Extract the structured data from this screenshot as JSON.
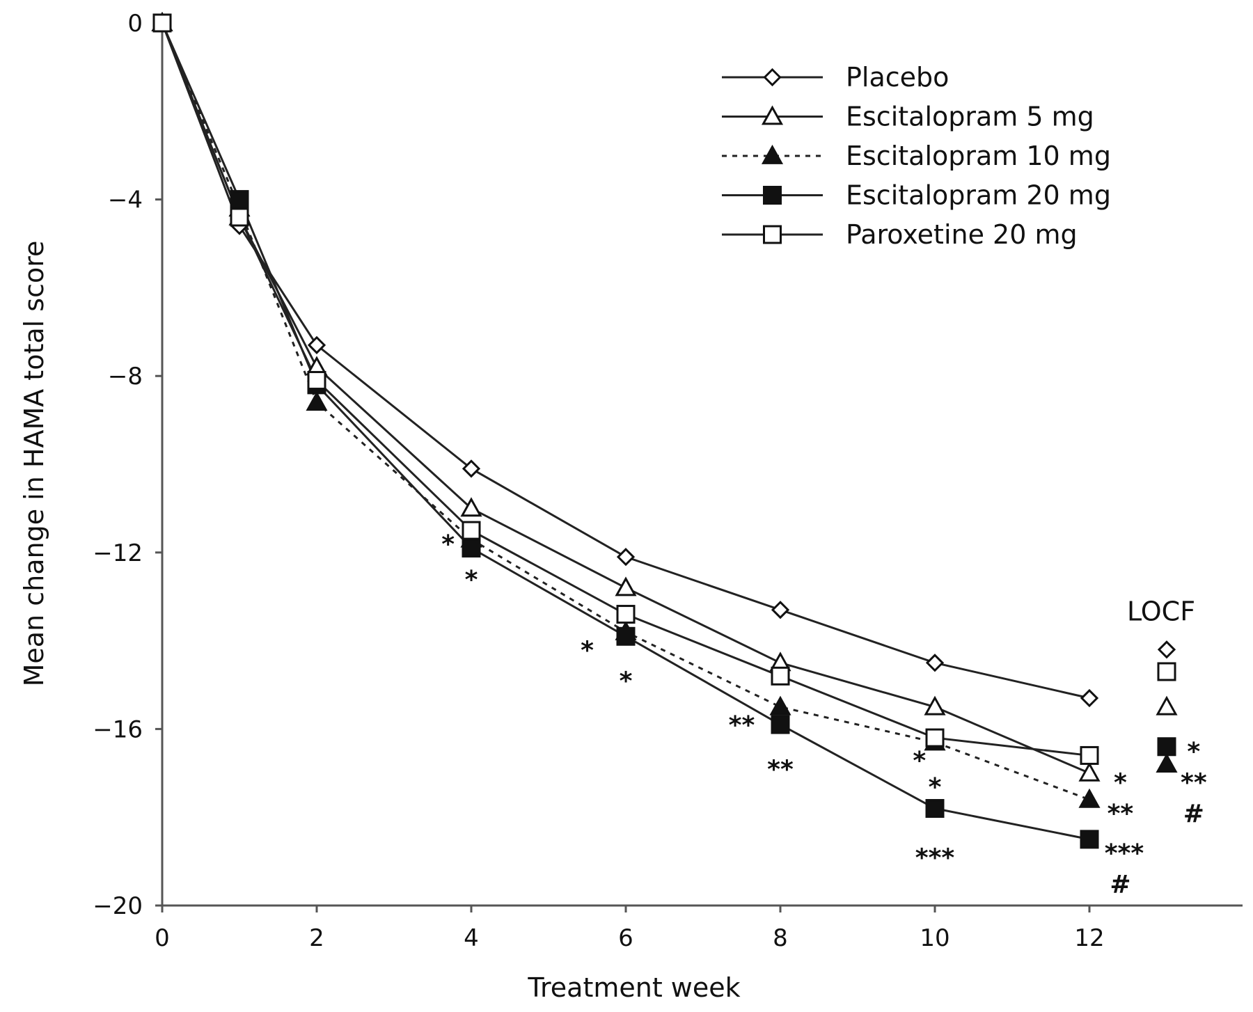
{
  "chart_data": {
    "type": "line",
    "xlabel": "Treatment week",
    "ylabel": "Mean change in HAMA total score",
    "xlim": [
      0,
      14
    ],
    "ylim": [
      -20,
      0
    ],
    "xticks": [
      "0",
      "2",
      "4",
      "6",
      "8",
      "10",
      "12"
    ],
    "xtick_values": [
      0,
      2,
      4,
      6,
      8,
      10,
      12
    ],
    "yticks": [
      "0",
      "−4",
      "−8",
      "−12",
      "−16",
      "−20"
    ],
    "ytick_values": [
      0,
      -4,
      -8,
      -12,
      -16,
      -20
    ],
    "grid": false,
    "legend_position": "top-right",
    "x": [
      0,
      1,
      2,
      4,
      6,
      8,
      10,
      12
    ],
    "series": [
      {
        "name": "Placebo",
        "marker": "diamond-open",
        "dash": "solid",
        "values": [
          0,
          -4.6,
          -7.3,
          -10.1,
          -12.1,
          -13.3,
          -14.5,
          -15.3
        ]
      },
      {
        "name": "Escitalopram 5 mg",
        "marker": "triangle-open",
        "dash": "solid",
        "values": [
          0,
          -4.4,
          -7.8,
          -11.0,
          -12.8,
          -14.5,
          -15.5,
          -17.0
        ]
      },
      {
        "name": "Escitalopram 10 mg",
        "marker": "triangle-filled",
        "dash": "dotted",
        "values": [
          0,
          -4.2,
          -8.6,
          -11.7,
          -13.8,
          -15.5,
          -16.3,
          -17.6
        ]
      },
      {
        "name": "Escitalopram 20 mg",
        "marker": "square-filled",
        "dash": "solid",
        "values": [
          0,
          -4.0,
          -8.2,
          -11.9,
          -13.9,
          -15.9,
          -17.8,
          -18.5
        ]
      },
      {
        "name": "Paroxetine 20 mg",
        "marker": "square-open",
        "dash": "solid",
        "values": [
          0,
          -4.4,
          -8.1,
          -11.5,
          -13.4,
          -14.8,
          -16.2,
          -16.6
        ]
      }
    ],
    "locf": {
      "label": "LOCF",
      "x": 13,
      "points": [
        {
          "series": "Placebo",
          "marker": "diamond-open",
          "value": -14.2
        },
        {
          "series": "Paroxetine 20 mg",
          "marker": "square-open",
          "value": -14.7
        },
        {
          "series": "Escitalopram 5 mg",
          "marker": "triangle-open",
          "value": -15.5
        },
        {
          "series": "Escitalopram 20 mg",
          "marker": "square-filled",
          "value": -16.4
        },
        {
          "series": "Escitalopram 10 mg",
          "marker": "triangle-filled",
          "value": -16.8
        }
      ]
    },
    "annotations": [
      {
        "text": "*",
        "x": 3.7,
        "y": -11.8
      },
      {
        "text": "*",
        "x": 4.0,
        "y": -12.6
      },
      {
        "text": "*",
        "x": 5.5,
        "y": -14.2
      },
      {
        "text": "*",
        "x": 6.0,
        "y": -14.9
      },
      {
        "text": "**",
        "x": 7.5,
        "y": -15.9
      },
      {
        "text": "**",
        "x": 8.0,
        "y": -16.9
      },
      {
        "text": "*",
        "x": 9.8,
        "y": -16.7
      },
      {
        "text": "*",
        "x": 10.0,
        "y": -17.3
      },
      {
        "text": "***",
        "x": 10.0,
        "y": -18.9
      },
      {
        "text": "*",
        "x": 12.4,
        "y": -17.2
      },
      {
        "text": "**",
        "x": 12.4,
        "y": -17.9
      },
      {
        "text": "***",
        "x": 12.45,
        "y": -18.8
      },
      {
        "text": "#",
        "x": 12.4,
        "y": -19.5
      },
      {
        "text": "*",
        "x": 13.35,
        "y": -16.5
      },
      {
        "text": "**",
        "x": 13.35,
        "y": -17.2
      },
      {
        "text": "#",
        "x": 13.35,
        "y": -17.9
      }
    ]
  }
}
